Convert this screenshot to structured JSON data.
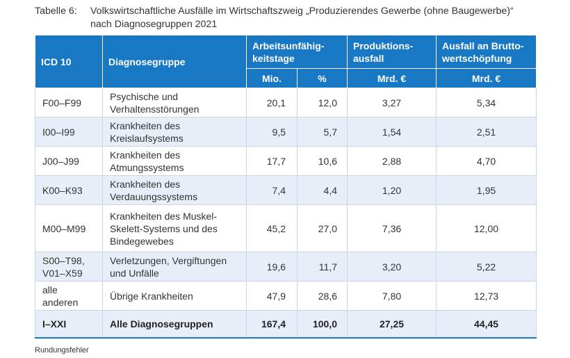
{
  "caption": {
    "label": "Tabelle 6:",
    "title_line1": "Volkswirtschaftliche Ausfälle im Wirtschaftszweig „Produzierendes Gewerbe (ohne Baugewerbe)“",
    "title_line2": "nach Diagnosegruppen 2021"
  },
  "table": {
    "headers": {
      "icd": "ICD 10",
      "gruppe": "Diagnosegruppe",
      "au_line1": "Arbeitsunfähig-",
      "au_line2": "keitstage",
      "prod_line1": "Produktions-",
      "prod_line2": "ausfall",
      "brutto_line1": "Ausfall an Brutto-",
      "brutto_line2": "wertschöpfung",
      "unit_mio": "Mio.",
      "unit_pct": "%",
      "unit_mrd1": "Mrd. €",
      "unit_mrd2": "Mrd. €"
    },
    "rows": [
      {
        "icd_l1": "F00–F99",
        "icd_l2": "",
        "grp_l1": "Psychische und",
        "grp_l2": "Verhaltensstörungen",
        "grp_l3": "",
        "mio": "20,1",
        "pct": "12,0",
        "prod": "3,27",
        "brutto": "5,34"
      },
      {
        "icd_l1": "I00–I99",
        "icd_l2": "",
        "grp_l1": "Krankheiten des",
        "grp_l2": "Kreislaufsystems",
        "grp_l3": "",
        "mio": "9,5",
        "pct": "5,7",
        "prod": "1,54",
        "brutto": "2,51"
      },
      {
        "icd_l1": "J00–J99",
        "icd_l2": "",
        "grp_l1": "Krankheiten des",
        "grp_l2": "Atmungssystems",
        "grp_l3": "",
        "mio": "17,7",
        "pct": "10,6",
        "prod": "2,88",
        "brutto": "4,70"
      },
      {
        "icd_l1": "K00–K93",
        "icd_l2": "",
        "grp_l1": "Krankheiten des",
        "grp_l2": "Verdauungssystems",
        "grp_l3": "",
        "mio": "7,4",
        "pct": "4,4",
        "prod": "1,20",
        "brutto": "1,95"
      },
      {
        "icd_l1": "M00–M99",
        "icd_l2": "",
        "grp_l1": "Krankheiten des Muskel-",
        "grp_l2": "Skelett-Systems und des",
        "grp_l3": "Bindegewebes",
        "mio": "45,2",
        "pct": "27,0",
        "prod": "7,36",
        "brutto": "12,00"
      },
      {
        "icd_l1": "S00–T98,",
        "icd_l2": "V01–X59",
        "grp_l1": "Verletzungen, Vergiftungen",
        "grp_l2": "und Unfälle",
        "grp_l3": "",
        "mio": "19,6",
        "pct": "11,7",
        "prod": "3,20",
        "brutto": "5,22"
      },
      {
        "icd_l1": "alle",
        "icd_l2": "anderen",
        "grp_l1": "Übrige Krankheiten",
        "grp_l2": "",
        "grp_l3": "",
        "mio": "47,9",
        "pct": "28,6",
        "prod": "7,80",
        "brutto": "12,73"
      }
    ],
    "total": {
      "icd": "I–XXI",
      "grp": "Alle Diagnosegruppen",
      "mio": "167,4",
      "pct": "100,0",
      "prod": "27,25",
      "brutto": "44,45"
    }
  },
  "footnote": "Rundungsfehler",
  "colors": {
    "header_bg": "#1878c4",
    "stripe": "#e8eef8",
    "border": "#c9d6e6"
  }
}
